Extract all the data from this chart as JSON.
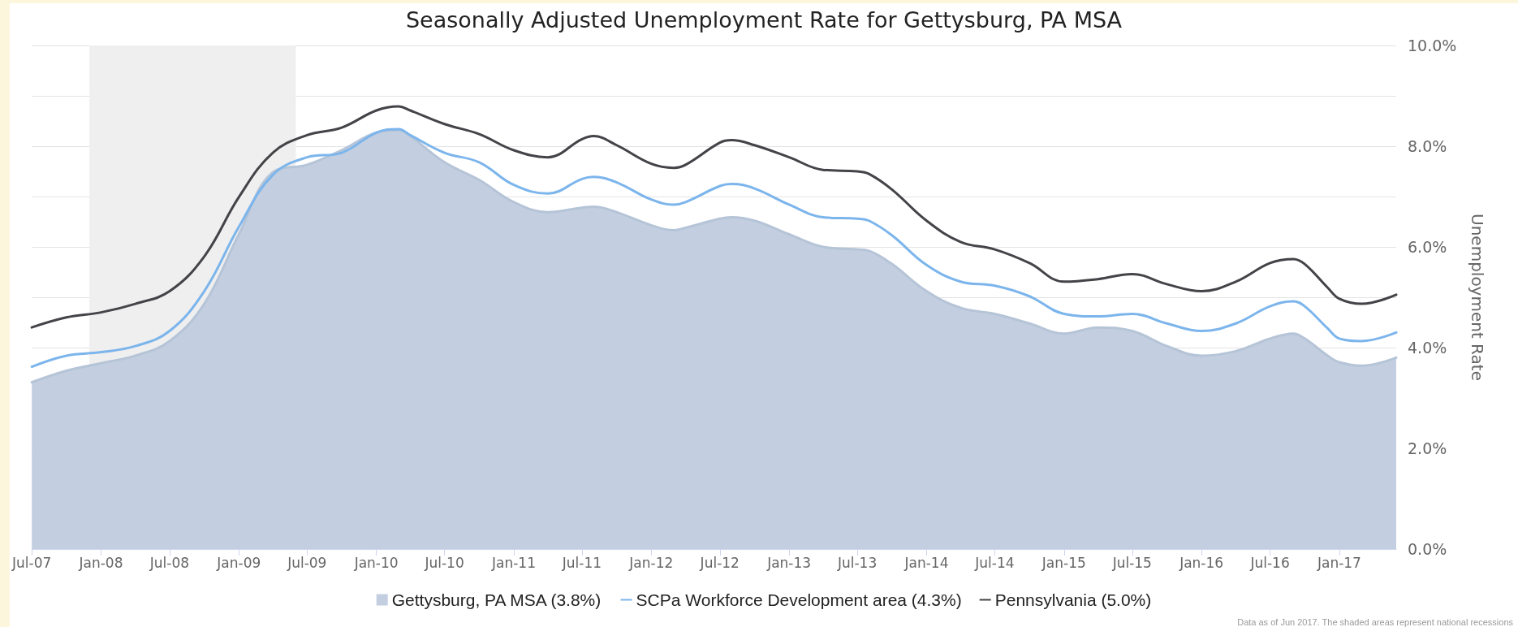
{
  "chart_data": {
    "type": "line",
    "title": "Seasonally Adjusted Unemployment Rate for Gettysburg, PA MSA",
    "ylabel": "Unemployment Rate",
    "annotations": [
      "Data as of Jun 2017. The shaded areas represent national recessions"
    ],
    "x": [
      "2007-07",
      "2007-10",
      "2008-01",
      "2008-04",
      "2008-07",
      "2008-10",
      "2009-01",
      "2009-04",
      "2009-07",
      "2009-10",
      "2010-01",
      "2010-03",
      "2010-04",
      "2010-07",
      "2010-10",
      "2011-01",
      "2011-04",
      "2011-07",
      "2011-08",
      "2011-10",
      "2012-01",
      "2012-03",
      "2012-04",
      "2012-07",
      "2012-08",
      "2012-10",
      "2013-01",
      "2013-04",
      "2013-07",
      "2013-08",
      "2013-10",
      "2014-01",
      "2014-04",
      "2014-07",
      "2014-10",
      "2015-01",
      "2015-04",
      "2015-07",
      "2015-10",
      "2016-01",
      "2016-04",
      "2016-07",
      "2016-09",
      "2016-10",
      "2016-12",
      "2017-01",
      "2017-03",
      "2017-06"
    ],
    "series": [
      {
        "name": "Gettysburg, PA MSA (3.8%)",
        "type": "area",
        "color": "#c3cfe0",
        "values": [
          3.31,
          3.54,
          3.69,
          3.84,
          4.13,
          4.87,
          6.25,
          7.48,
          7.63,
          7.92,
          8.27,
          8.32,
          8.2,
          7.68,
          7.33,
          6.89,
          6.69,
          6.78,
          6.8,
          6.69,
          6.43,
          6.33,
          6.38,
          6.56,
          6.59,
          6.52,
          6.25,
          6.0,
          5.95,
          5.92,
          5.66,
          5.12,
          4.79,
          4.67,
          4.48,
          4.28,
          4.4,
          4.33,
          4.03,
          3.84,
          3.93,
          4.18,
          4.28,
          4.18,
          3.84,
          3.71,
          3.64,
          3.8
        ]
      },
      {
        "name": "SCPa Workforce Development area (4.3%)",
        "color": "#7cb5ec",
        "values": [
          3.62,
          3.84,
          3.91,
          4.03,
          4.33,
          5.12,
          6.4,
          7.43,
          7.78,
          7.87,
          8.27,
          8.34,
          8.22,
          7.87,
          7.68,
          7.23,
          7.06,
          7.35,
          7.39,
          7.28,
          6.94,
          6.84,
          6.89,
          7.21,
          7.25,
          7.16,
          6.84,
          6.59,
          6.56,
          6.52,
          6.23,
          5.64,
          5.31,
          5.23,
          5.02,
          4.67,
          4.62,
          4.67,
          4.48,
          4.33,
          4.48,
          4.82,
          4.92,
          4.82,
          4.38,
          4.18,
          4.13,
          4.3
        ]
      },
      {
        "name": "Pennsylvania (5.0%)",
        "color": "#434348",
        "values": [
          4.4,
          4.6,
          4.7,
          4.87,
          5.12,
          5.81,
          6.99,
          7.87,
          8.22,
          8.37,
          8.71,
          8.79,
          8.71,
          8.44,
          8.24,
          7.92,
          7.78,
          8.14,
          8.2,
          8.02,
          7.65,
          7.57,
          7.63,
          8.07,
          8.12,
          8.02,
          7.78,
          7.53,
          7.5,
          7.45,
          7.14,
          6.52,
          6.1,
          5.95,
          5.68,
          5.31,
          5.36,
          5.46,
          5.26,
          5.12,
          5.31,
          5.68,
          5.76,
          5.66,
          5.19,
          4.97,
          4.87,
          5.05
        ]
      }
    ],
    "xlim": [
      "2007-07",
      "2017-06"
    ],
    "xticks": [
      {
        "value": "2007-07",
        "label": "Jul-07"
      },
      {
        "value": "2008-01",
        "label": "Jan-08"
      },
      {
        "value": "2008-07",
        "label": "Jul-08"
      },
      {
        "value": "2009-01",
        "label": "Jan-09"
      },
      {
        "value": "2009-07",
        "label": "Jul-09"
      },
      {
        "value": "2010-01",
        "label": "Jan-10"
      },
      {
        "value": "2010-07",
        "label": "Jul-10"
      },
      {
        "value": "2011-01",
        "label": "Jan-11"
      },
      {
        "value": "2011-07",
        "label": "Jul-11"
      },
      {
        "value": "2012-01",
        "label": "Jan-12"
      },
      {
        "value": "2012-07",
        "label": "Jul-12"
      },
      {
        "value": "2013-01",
        "label": "Jan-13"
      },
      {
        "value": "2013-07",
        "label": "Jul-13"
      },
      {
        "value": "2014-01",
        "label": "Jan-14"
      },
      {
        "value": "2014-07",
        "label": "Jul-14"
      },
      {
        "value": "2015-01",
        "label": "Jan-15"
      },
      {
        "value": "2015-07",
        "label": "Jul-15"
      },
      {
        "value": "2016-01",
        "label": "Jan-16"
      },
      {
        "value": "2016-07",
        "label": "Jul-16"
      },
      {
        "value": "2017-01",
        "label": "Jan-17"
      }
    ],
    "ylim": [
      0,
      10
    ],
    "yticks": [
      {
        "value": 0,
        "label": "0.0%"
      },
      {
        "value": 2,
        "label": "2.0%"
      },
      {
        "value": 4,
        "label": "4.0%"
      },
      {
        "value": 5,
        "label": null
      },
      {
        "value": 6,
        "label": "6.0%"
      },
      {
        "value": 7,
        "label": null
      },
      {
        "value": 8,
        "label": "8.0%"
      },
      {
        "value": 9,
        "label": null
      },
      {
        "value": 10,
        "label": "10.0%"
      }
    ],
    "bands": [
      {
        "axis": "x",
        "from": "2007-12",
        "to": "2009-06",
        "color": "#efefef"
      }
    ],
    "grid": "y",
    "legend": "bottom",
    "marker": "none",
    "line_style": "solid"
  }
}
